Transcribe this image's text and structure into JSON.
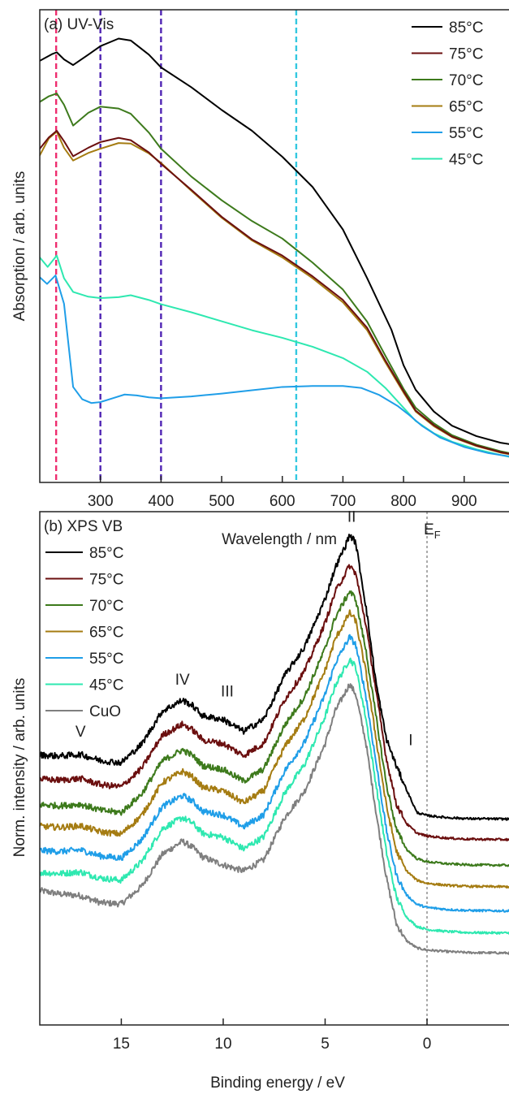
{
  "chart_data": [
    {
      "type": "line",
      "panel_label": "(a) UV-Vis",
      "xlabel": "Wavelength / nm",
      "ylabel": "Absorption / arb. units",
      "xlim": [
        200,
        990
      ],
      "ylim": [
        0,
        1
      ],
      "x_ticks": [
        300,
        400,
        500,
        600,
        700,
        800,
        900
      ],
      "y_ticks_labeled": false,
      "grid": false,
      "legend_position": "top-right",
      "series": [
        {
          "name": "85°C",
          "color": "#000000",
          "x": [
            200,
            220,
            228,
            240,
            255,
            280,
            300,
            330,
            350,
            380,
            400,
            450,
            500,
            550,
            600,
            650,
            700,
            740,
            780,
            800,
            820,
            850,
            880,
            920,
            960,
            990
          ],
          "y": [
            0.892,
            0.906,
            0.91,
            0.895,
            0.883,
            0.905,
            0.923,
            0.939,
            0.935,
            0.905,
            0.878,
            0.836,
            0.788,
            0.744,
            0.689,
            0.625,
            0.535,
            0.432,
            0.323,
            0.248,
            0.196,
            0.15,
            0.12,
            0.098,
            0.084,
            0.078
          ]
        },
        {
          "name": "75°C",
          "color": "#6b0f0f",
          "x": [
            200,
            215,
            228,
            240,
            255,
            280,
            300,
            330,
            350,
            380,
            400,
            450,
            500,
            550,
            600,
            650,
            700,
            740,
            770,
            800,
            820,
            850,
            880,
            920,
            960,
            990
          ],
          "y": [
            0.706,
            0.73,
            0.744,
            0.722,
            0.69,
            0.708,
            0.72,
            0.729,
            0.724,
            0.698,
            0.674,
            0.619,
            0.562,
            0.514,
            0.48,
            0.436,
            0.386,
            0.327,
            0.258,
            0.193,
            0.152,
            0.121,
            0.097,
            0.078,
            0.064,
            0.057
          ]
        },
        {
          "name": "70°C",
          "color": "#3d7a1c",
          "x": [
            200,
            215,
            228,
            240,
            255,
            280,
            300,
            330,
            350,
            380,
            400,
            450,
            500,
            550,
            600,
            650,
            700,
            740,
            770,
            800,
            820,
            850,
            880,
            920,
            960,
            990
          ],
          "y": [
            0.805,
            0.817,
            0.823,
            0.799,
            0.755,
            0.782,
            0.795,
            0.791,
            0.78,
            0.74,
            0.706,
            0.647,
            0.597,
            0.553,
            0.516,
            0.465,
            0.408,
            0.34,
            0.268,
            0.198,
            0.158,
            0.125,
            0.1,
            0.08,
            0.066,
            0.058
          ]
        },
        {
          "name": "65°C",
          "color": "#a57c12",
          "x": [
            200,
            215,
            228,
            240,
            255,
            280,
            300,
            330,
            350,
            380,
            400,
            450,
            500,
            550,
            600,
            650,
            700,
            740,
            770,
            800,
            820,
            850,
            880,
            920,
            960,
            990
          ],
          "y": [
            0.692,
            0.728,
            0.742,
            0.708,
            0.681,
            0.697,
            0.706,
            0.718,
            0.717,
            0.696,
            0.676,
            0.617,
            0.56,
            0.512,
            0.476,
            0.432,
            0.381,
            0.322,
            0.254,
            0.19,
            0.15,
            0.119,
            0.096,
            0.077,
            0.063,
            0.056
          ]
        },
        {
          "name": "55°C",
          "color": "#1f9ee8",
          "x": [
            200,
            212,
            226,
            240,
            255,
            270,
            285,
            300,
            320,
            340,
            360,
            380,
            400,
            450,
            500,
            550,
            600,
            650,
            700,
            730,
            760,
            790,
            810,
            830,
            860,
            900,
            940,
            990
          ],
          "y": [
            0.434,
            0.42,
            0.438,
            0.378,
            0.202,
            0.176,
            0.168,
            0.17,
            0.178,
            0.186,
            0.184,
            0.18,
            0.178,
            0.182,
            0.188,
            0.195,
            0.202,
            0.204,
            0.204,
            0.2,
            0.185,
            0.162,
            0.142,
            0.12,
            0.095,
            0.075,
            0.062,
            0.052
          ]
        },
        {
          "name": "45°C",
          "color": "#2ee8b0",
          "x": [
            200,
            213,
            228,
            240,
            255,
            280,
            300,
            330,
            350,
            380,
            400,
            450,
            500,
            550,
            600,
            650,
            700,
            740,
            770,
            800,
            820,
            850,
            880,
            920,
            960,
            990
          ],
          "y": [
            0.476,
            0.456,
            0.48,
            0.432,
            0.403,
            0.393,
            0.39,
            0.392,
            0.396,
            0.386,
            0.377,
            0.36,
            0.341,
            0.322,
            0.306,
            0.287,
            0.263,
            0.234,
            0.2,
            0.158,
            0.13,
            0.104,
            0.086,
            0.07,
            0.058,
            0.05
          ]
        }
      ],
      "reference_lines": [
        {
          "x": 227,
          "color": "#ee2d6f"
        },
        {
          "x": 300,
          "color": "#5025b4"
        },
        {
          "x": 400,
          "color": "#5025b4"
        },
        {
          "x": 623,
          "color": "#33c8e0"
        }
      ]
    },
    {
      "type": "line",
      "panel_label": "(b) XPS VB",
      "xlabel": "Binding energy / eV",
      "ylabel": "Norm. intensity / arb. units",
      "xlim": [
        19,
        -4.5
      ],
      "ylim": [
        0,
        1
      ],
      "x_ticks": [
        15,
        10,
        5,
        0
      ],
      "y_ticks_labeled": false,
      "grid": false,
      "legend_position": "top-left",
      "reference_lines": [
        {
          "x": 0,
          "color": "#aaaaaa",
          "label": "E",
          "label_sub": "F"
        }
      ],
      "peak_labels": [
        {
          "text": "V",
          "x": 17.0,
          "y": 0.562
        },
        {
          "text": "IV",
          "x": 12.0,
          "y": 0.663
        },
        {
          "text": "III",
          "x": 9.8,
          "y": 0.64
        },
        {
          "text": "II",
          "x": 3.7,
          "y": 0.98
        },
        {
          "text": "I",
          "x": 0.8,
          "y": 0.545
        }
      ],
      "series": [
        {
          "name": "85°C",
          "color": "#000000",
          "x": [
            19,
            18,
            17,
            16,
            15,
            14,
            13,
            12,
            11.5,
            11,
            10,
            9,
            8,
            7,
            6,
            5,
            4.5,
            4,
            3.8,
            3.5,
            3,
            2.5,
            2,
            1.5,
            1,
            0.5,
            0,
            -1,
            -2,
            -4.5
          ],
          "y": [
            0.526,
            0.524,
            0.527,
            0.515,
            0.511,
            0.547,
            0.611,
            0.633,
            0.622,
            0.602,
            0.595,
            0.572,
            0.596,
            0.68,
            0.737,
            0.83,
            0.891,
            0.934,
            0.955,
            0.94,
            0.816,
            0.666,
            0.558,
            0.504,
            0.458,
            0.414,
            0.408,
            0.404,
            0.402,
            0.401
          ]
        },
        {
          "name": "75°C",
          "color": "#6b0f0f",
          "x": [
            19,
            18,
            17,
            16,
            15,
            14,
            13,
            12,
            11.5,
            11,
            10,
            9,
            8,
            7,
            6,
            5,
            4.5,
            4,
            3.8,
            3.5,
            3,
            2.5,
            2,
            1.5,
            1,
            0.5,
            0,
            -1,
            -2,
            -4.5
          ],
          "y": [
            0.479,
            0.477,
            0.48,
            0.468,
            0.464,
            0.5,
            0.564,
            0.586,
            0.575,
            0.555,
            0.548,
            0.525,
            0.549,
            0.633,
            0.69,
            0.783,
            0.844,
            0.88,
            0.895,
            0.88,
            0.78,
            0.65,
            0.52,
            0.43,
            0.392,
            0.374,
            0.368,
            0.364,
            0.362,
            0.361
          ]
        },
        {
          "name": "70°C",
          "color": "#3d7a1c",
          "x": [
            19,
            18,
            17,
            16,
            15,
            14,
            13,
            12,
            11.5,
            11,
            10,
            9,
            8,
            7,
            6,
            5,
            4.5,
            4,
            3.8,
            3.5,
            3,
            2.5,
            2,
            1.5,
            1,
            0.5,
            0,
            -1,
            -2,
            -4.5
          ],
          "y": [
            0.429,
            0.427,
            0.43,
            0.418,
            0.414,
            0.45,
            0.514,
            0.536,
            0.525,
            0.505,
            0.498,
            0.475,
            0.499,
            0.583,
            0.64,
            0.733,
            0.794,
            0.83,
            0.845,
            0.83,
            0.73,
            0.6,
            0.47,
            0.38,
            0.342,
            0.324,
            0.318,
            0.314,
            0.312,
            0.311
          ]
        },
        {
          "name": "65°C",
          "color": "#a57c12",
          "x": [
            19,
            18,
            17,
            16,
            15,
            14,
            13,
            12,
            11.5,
            11,
            10,
            9,
            8,
            7,
            6,
            5,
            4.5,
            4,
            3.8,
            3.5,
            3,
            2.5,
            2,
            1.5,
            1,
            0.5,
            0,
            -1,
            -2,
            -4.5
          ],
          "y": [
            0.387,
            0.385,
            0.388,
            0.376,
            0.372,
            0.408,
            0.472,
            0.494,
            0.483,
            0.463,
            0.456,
            0.433,
            0.457,
            0.541,
            0.598,
            0.691,
            0.752,
            0.788,
            0.803,
            0.788,
            0.688,
            0.558,
            0.428,
            0.338,
            0.3,
            0.282,
            0.276,
            0.272,
            0.27,
            0.269
          ]
        },
        {
          "name": "55°C",
          "color": "#1f9ee8",
          "x": [
            19,
            18,
            17,
            16,
            15,
            14,
            13,
            12,
            11.5,
            11,
            10,
            9,
            8,
            7,
            6,
            5,
            4.5,
            4,
            3.8,
            3.5,
            3,
            2.5,
            2,
            1.5,
            1,
            0.5,
            0,
            -1,
            -2,
            -4.5
          ],
          "y": [
            0.34,
            0.338,
            0.341,
            0.329,
            0.325,
            0.361,
            0.425,
            0.447,
            0.436,
            0.416,
            0.409,
            0.386,
            0.41,
            0.494,
            0.551,
            0.644,
            0.705,
            0.741,
            0.756,
            0.741,
            0.641,
            0.511,
            0.381,
            0.291,
            0.253,
            0.235,
            0.229,
            0.225,
            0.223,
            0.222
          ]
        },
        {
          "name": "45°C",
          "color": "#2ee8b0",
          "x": [
            19,
            18,
            17,
            16,
            15,
            14,
            13,
            12,
            11.5,
            11,
            10,
            9,
            8,
            7,
            6,
            5,
            4.5,
            4,
            3.8,
            3.5,
            3,
            2.5,
            2,
            1.5,
            1,
            0.5,
            0,
            -1,
            -2,
            -4.5
          ],
          "y": [
            0.297,
            0.295,
            0.298,
            0.286,
            0.282,
            0.318,
            0.382,
            0.404,
            0.393,
            0.373,
            0.366,
            0.343,
            0.367,
            0.451,
            0.508,
            0.601,
            0.662,
            0.698,
            0.713,
            0.698,
            0.598,
            0.468,
            0.338,
            0.248,
            0.21,
            0.192,
            0.186,
            0.182,
            0.18,
            0.179
          ]
        },
        {
          "name": "CuO",
          "color": "#7f7f7f",
          "x": [
            19,
            18,
            17,
            16,
            15,
            14,
            13,
            12,
            11.5,
            11,
            10,
            9,
            8,
            7,
            6,
            5,
            4.5,
            4,
            3.8,
            3.5,
            3,
            2.5,
            2,
            1.5,
            1,
            0.5,
            0,
            -1,
            -2,
            -4.5
          ],
          "y": [
            0.262,
            0.255,
            0.252,
            0.238,
            0.236,
            0.27,
            0.332,
            0.358,
            0.346,
            0.327,
            0.312,
            0.3,
            0.322,
            0.403,
            0.456,
            0.548,
            0.612,
            0.649,
            0.664,
            0.645,
            0.55,
            0.414,
            0.288,
            0.196,
            0.164,
            0.15,
            0.146,
            0.143,
            0.141,
            0.14
          ]
        }
      ]
    }
  ]
}
